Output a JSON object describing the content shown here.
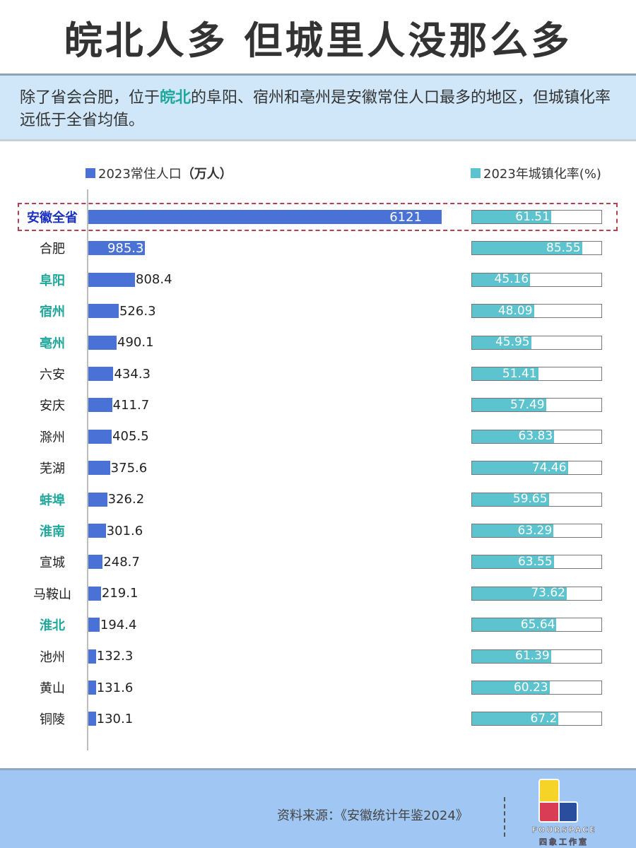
{
  "title": "皖北人多 但城里人没那么多",
  "subtitle": {
    "part1": "除了省会合肥，位于",
    "highlight": "皖北",
    "part2": "的阜阳、宿州和亳州是安徽常住人口最多的地区，但城镇化率远低于全省均值。"
  },
  "colors": {
    "population_bar": "#4a72d6",
    "urbanization_bar": "#5cc3cf",
    "highlight_text": "#1fa79b",
    "province_label": "#1b2fc1",
    "dashed_box": "#b5404e",
    "subtitle_bg": "#cfe7f9",
    "footer_bg": "#a0c7f3"
  },
  "legend": {
    "population": {
      "prefix": "2023常住人口",
      "unit": "（万人）"
    },
    "urbanization": {
      "label": "2023年城镇化率(%)"
    }
  },
  "footer": {
    "source": "资料来源：《安徽统计年鉴2024》",
    "logo_en": "FOURSPACE",
    "logo_cn": "四象工作室"
  },
  "chart_data": {
    "type": "bar",
    "orientation": "horizontal",
    "title": "皖北人多 但城里人没那么多",
    "categories": [
      "安徽全省",
      "合肥",
      "阜阳",
      "宿州",
      "亳州",
      "六安",
      "安庆",
      "滁州",
      "芜湖",
      "蚌埠",
      "淮南",
      "宣城",
      "马鞍山",
      "淮北",
      "池州",
      "黄山",
      "铜陵"
    ],
    "highlighted_categories": [
      "阜阳",
      "宿州",
      "亳州",
      "蚌埠",
      "淮南",
      "淮北"
    ],
    "series": [
      {
        "name": "2023常住人口（万人）",
        "values": [
          6121,
          985.3,
          808.4,
          526.3,
          490.1,
          434.3,
          411.7,
          405.5,
          375.6,
          326.2,
          301.6,
          248.7,
          219.1,
          194.4,
          132.3,
          131.6,
          130.1
        ]
      },
      {
        "name": "2023年城镇化率(%)",
        "values": [
          61.51,
          85.55,
          45.16,
          48.09,
          45.95,
          51.41,
          57.49,
          63.83,
          74.46,
          59.65,
          63.29,
          63.55,
          73.62,
          65.64,
          61.39,
          60.23,
          67.2
        ],
        "range": [
          0,
          100
        ]
      }
    ],
    "xlabel": "",
    "ylabel": "",
    "legend_position": "top",
    "grid": false
  },
  "rows": [
    {
      "name": "安徽全省",
      "pop": "6121",
      "urb": "61.51",
      "style": "navy"
    },
    {
      "name": "合肥",
      "pop": "985.3",
      "urb": "85.55",
      "style": "normal"
    },
    {
      "name": "阜阳",
      "pop": "808.4",
      "urb": "45.16",
      "style": "teal"
    },
    {
      "name": "宿州",
      "pop": "526.3",
      "urb": "48.09",
      "style": "teal"
    },
    {
      "name": "亳州",
      "pop": "490.1",
      "urb": "45.95",
      "style": "teal"
    },
    {
      "name": "六安",
      "pop": "434.3",
      "urb": "51.41",
      "style": "normal"
    },
    {
      "name": "安庆",
      "pop": "411.7",
      "urb": "57.49",
      "style": "normal"
    },
    {
      "name": "滁州",
      "pop": "405.5",
      "urb": "63.83",
      "style": "normal"
    },
    {
      "name": "芜湖",
      "pop": "375.6",
      "urb": "74.46",
      "style": "normal"
    },
    {
      "name": "蚌埠",
      "pop": "326.2",
      "urb": "59.65",
      "style": "teal"
    },
    {
      "name": "淮南",
      "pop": "301.6",
      "urb": "63.29",
      "style": "teal"
    },
    {
      "name": "宣城",
      "pop": "248.7",
      "urb": "63.55",
      "style": "normal"
    },
    {
      "name": "马鞍山",
      "pop": "219.1",
      "urb": "73.62",
      "style": "normal"
    },
    {
      "name": "淮北",
      "pop": "194.4",
      "urb": "65.64",
      "style": "teal"
    },
    {
      "name": "池州",
      "pop": "132.3",
      "urb": "61.39",
      "style": "normal"
    },
    {
      "name": "黄山",
      "pop": "131.6",
      "urb": "60.23",
      "style": "normal"
    },
    {
      "name": "铜陵",
      "pop": "130.1",
      "urb": "67.2",
      "style": "normal"
    }
  ]
}
